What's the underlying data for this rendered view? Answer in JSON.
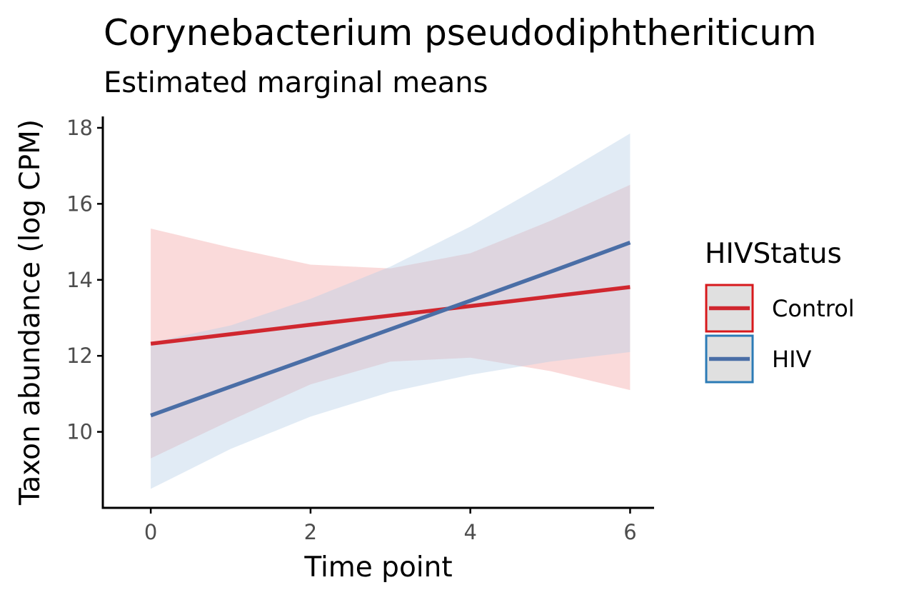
{
  "chart_data": {
    "type": "line",
    "title": "Corynebacterium pseudodiphtheriticum",
    "subtitle": "Estimated marginal means",
    "xlabel": "Time point",
    "ylabel": "Taxon abundance (log CPM)",
    "xlim": [
      -0.6,
      6.3
    ],
    "ylim": [
      8.0,
      18.3
    ],
    "x_ticks": [
      0,
      2,
      4,
      6
    ],
    "y_ticks": [
      10,
      12,
      14,
      16,
      18
    ],
    "grid": false,
    "legend": {
      "title": "HIVStatus",
      "position": "right"
    },
    "series": [
      {
        "name": "Control",
        "color": "#d0272f",
        "band_color": "#f4a6a8",
        "x": [
          0,
          1,
          2,
          3,
          4,
          5,
          6
        ],
        "values": [
          12.32,
          12.57,
          12.82,
          13.06,
          13.31,
          13.56,
          13.81
        ],
        "lower": [
          9.3,
          10.3,
          11.25,
          11.85,
          11.95,
          11.6,
          11.1
        ],
        "upper": [
          15.35,
          14.85,
          14.4,
          14.3,
          14.7,
          15.55,
          16.5
        ]
      },
      {
        "name": "HIV",
        "color": "#4a6ea6",
        "band_color": "#b8cfe6",
        "x": [
          0,
          1,
          2,
          3,
          4,
          5,
          6
        ],
        "values": [
          10.43,
          11.19,
          11.94,
          12.7,
          13.45,
          14.21,
          14.98
        ],
        "lower": [
          8.5,
          9.55,
          10.4,
          11.05,
          11.5,
          11.85,
          12.1
        ],
        "upper": [
          12.35,
          12.8,
          13.5,
          14.35,
          15.4,
          16.6,
          17.85
        ]
      }
    ]
  }
}
